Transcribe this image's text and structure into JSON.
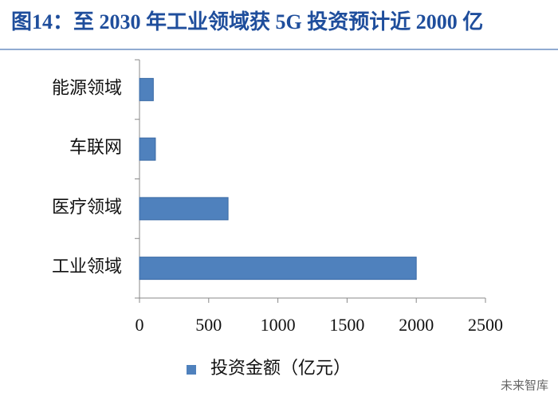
{
  "chart_data": {
    "type": "bar",
    "orientation": "horizontal",
    "title": "图14：至 2030 年工业领域获 5G 投资预计近 2000 亿",
    "categories": [
      "能源领域",
      "车联网",
      "医疗领域",
      "工业领域"
    ],
    "series": [
      {
        "name": "投资金额（亿元）",
        "color": "#4f81bd",
        "values": [
          100,
          115,
          640,
          2000
        ]
      }
    ],
    "xlim": [
      0,
      2500
    ],
    "xticks": [
      0,
      500,
      1000,
      1500,
      2000,
      2500
    ],
    "legend": "bottom",
    "watermark": "未来智库"
  }
}
